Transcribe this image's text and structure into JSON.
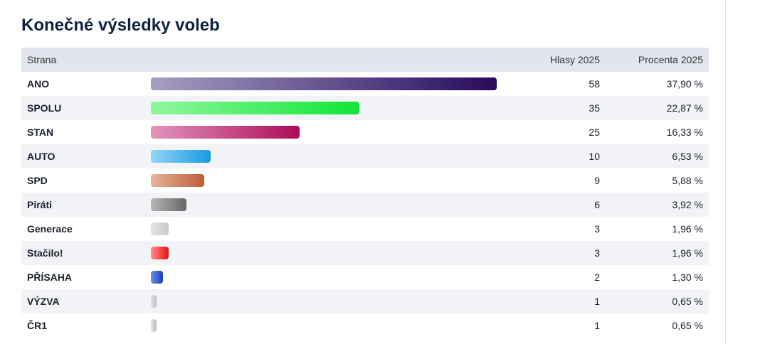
{
  "title": "Konečné výsledky voleb",
  "table": {
    "columns": [
      "Strana",
      "Hlasy 2025",
      "Procenta 2025"
    ],
    "rows": [
      {
        "party": "ANO",
        "votes": 58,
        "percent": "37,90 %",
        "colors": [
          "#a79dc3",
          "#260b5c"
        ]
      },
      {
        "party": "SPOLU",
        "votes": 35,
        "percent": "22,87 %",
        "colors": [
          "#8ff79c",
          "#0fe637"
        ]
      },
      {
        "party": "STAN",
        "votes": 25,
        "percent": "16,33 %",
        "colors": [
          "#e294bc",
          "#ad0c58"
        ]
      },
      {
        "party": "AUTO",
        "votes": 10,
        "percent": "6,53 %",
        "colors": [
          "#93d5f5",
          "#179be0"
        ]
      },
      {
        "party": "SPD",
        "votes": 9,
        "percent": "5,88 %",
        "colors": [
          "#e4b49c",
          "#c05e36"
        ]
      },
      {
        "party": "Piráti",
        "votes": 6,
        "percent": "3,92 %",
        "colors": [
          "#b5b5b5",
          "#666666"
        ]
      },
      {
        "party": "Generace",
        "votes": 3,
        "percent": "1,96 %",
        "colors": [
          "#e3e3e3",
          "#c9c9c9"
        ]
      },
      {
        "party": "Stačilo!",
        "votes": 3,
        "percent": "1,96 %",
        "colors": [
          "#ff8d8d",
          "#ec1010"
        ]
      },
      {
        "party": "PŘÍSAHA",
        "votes": 2,
        "percent": "1,30 %",
        "colors": [
          "#6d90e2",
          "#173cbf"
        ]
      },
      {
        "party": "VÝZVA",
        "votes": 1,
        "percent": "0,65 %",
        "colors": [
          "#e3e3e3",
          "#bbbbbb"
        ]
      },
      {
        "party": "ČR1",
        "votes": 1,
        "percent": "0,65 %",
        "colors": [
          "#e3e3e3",
          "#bbbbbb"
        ]
      }
    ]
  }
}
